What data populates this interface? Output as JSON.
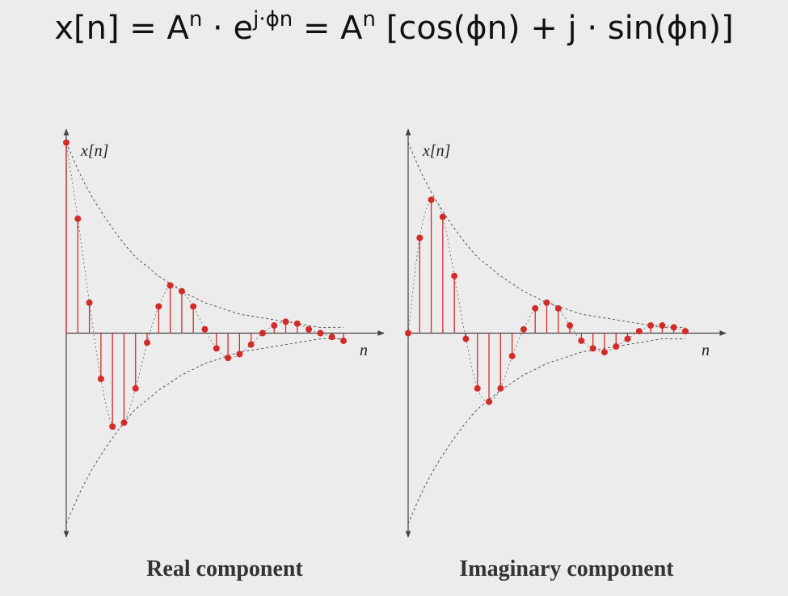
{
  "formula": [
    {
      "text": "x[n] = A"
    },
    {
      "sup": "n"
    },
    {
      "text": " · e"
    },
    {
      "sup": "j·ϕn"
    },
    {
      "text": " = A"
    },
    {
      "sup": "n"
    },
    {
      "text": " [cos(ϕn) + j · sin(ϕn)]"
    }
  ],
  "chart_data": [
    {
      "type": "stem",
      "title": "Real component",
      "x_label": "n",
      "y_label": "x[n]",
      "color": "#d42a2a",
      "x": [
        0,
        1,
        2,
        3,
        4,
        5,
        6,
        7,
        8,
        9,
        10,
        11,
        12,
        13,
        14,
        15,
        16,
        17,
        18,
        19,
        20,
        21,
        22,
        23,
        24
      ],
      "values": [
        1.0,
        0.6,
        0.16,
        -0.24,
        -0.49,
        -0.47,
        -0.29,
        -0.05,
        0.14,
        0.25,
        0.22,
        0.14,
        0.02,
        -0.08,
        -0.13,
        -0.11,
        -0.06,
        0.0,
        0.04,
        0.06,
        0.05,
        0.02,
        0.0,
        -0.02,
        -0.04
      ],
      "envelope": [
        1,
        0.86,
        0.74,
        0.64,
        0.55,
        0.47,
        0.4,
        0.35,
        0.3,
        0.26,
        0.22,
        0.19,
        0.16,
        0.14,
        0.12,
        0.1,
        0.09,
        0.08,
        0.07,
        0.06,
        0.05,
        0.04,
        0.03,
        0.03,
        0.03
      ],
      "xlim": [
        0,
        27.5
      ],
      "ylim": [
        -1.07,
        1.07
      ]
    },
    {
      "type": "stem",
      "title": "Imaginary component",
      "x_label": "n",
      "y_label": "x[n]",
      "color": "#d42a2a",
      "x": [
        0,
        1,
        2,
        3,
        4,
        5,
        6,
        7,
        8,
        9,
        10,
        11,
        12,
        13,
        14,
        15,
        16,
        17,
        18,
        19,
        20,
        21,
        22,
        23,
        24
      ],
      "values": [
        0.0,
        0.5,
        0.7,
        0.61,
        0.3,
        -0.03,
        -0.29,
        -0.36,
        -0.29,
        -0.12,
        0.02,
        0.13,
        0.16,
        0.13,
        0.04,
        -0.04,
        -0.08,
        -0.1,
        -0.07,
        -0.03,
        0.01,
        0.04,
        0.04,
        0.03,
        0.01
      ],
      "envelope": [
        1,
        0.86,
        0.74,
        0.64,
        0.55,
        0.47,
        0.4,
        0.35,
        0.3,
        0.26,
        0.22,
        0.19,
        0.16,
        0.14,
        0.12,
        0.1,
        0.09,
        0.08,
        0.07,
        0.06,
        0.05,
        0.04,
        0.03,
        0.03,
        0.03
      ],
      "xlim": [
        0,
        27.5
      ],
      "ylim": [
        -1.07,
        1.07
      ]
    }
  ]
}
